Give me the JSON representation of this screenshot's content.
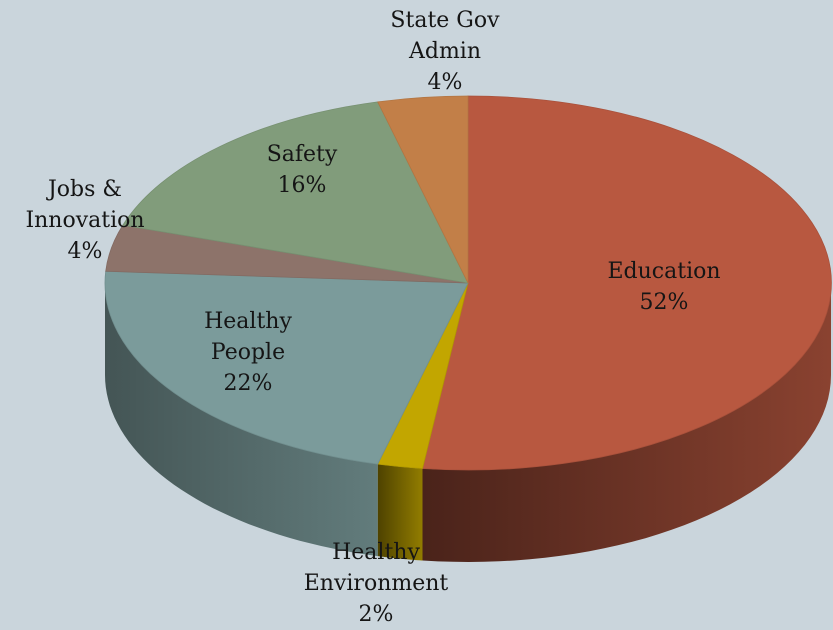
{
  "chart_data": {
    "type": "pie",
    "title": "",
    "start_angle_deg": 270,
    "direction": "clockwise",
    "slices": [
      {
        "name": "Education",
        "value": 52,
        "label_lines": [
          "Education",
          "52%"
        ],
        "color": "#b85840"
      },
      {
        "name": "Healthy Environment",
        "value": 2,
        "label_lines": [
          "Healthy",
          "Environment",
          "2%"
        ],
        "color": "#c2a600"
      },
      {
        "name": "Healthy People",
        "value": 22,
        "label_lines": [
          "Healthy",
          "People",
          "22%"
        ],
        "color": "#7b9b9b"
      },
      {
        "name": "Jobs & Innovation",
        "value": 4,
        "label_lines": [
          "Jobs &",
          "Innovation",
          "4%"
        ],
        "color": "#8d736a"
      },
      {
        "name": "Safety",
        "value": 16,
        "label_lines": [
          "Safety",
          "16%"
        ],
        "color": "#819c7b"
      },
      {
        "name": "State Gov Admin",
        "value": 4,
        "label_lines": [
          "State Gov",
          "Admin",
          "4%"
        ],
        "color": "#c27f48"
      }
    ]
  }
}
